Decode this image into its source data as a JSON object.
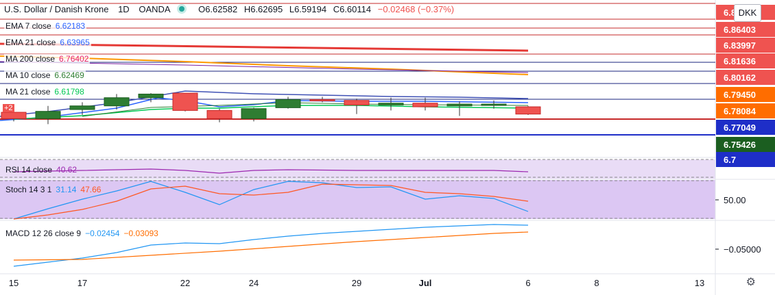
{
  "header": {
    "symbol": "U.S. Dollar / Danish Krone",
    "interval": "1D",
    "source": "OANDA",
    "open": "O6.62582",
    "high": "H6.62695",
    "low": "L6.59194",
    "close": "C6.60114",
    "change": "−0.02468 (−0.37%)",
    "currency": "DKK"
  },
  "badge": "+2",
  "legends": {
    "ema7": {
      "label": "EMA 7 close",
      "value": "6.62183",
      "color": "#2962ff"
    },
    "ema21": {
      "label": "EMA 21 close",
      "value": "6.63965",
      "color": "#2962ff"
    },
    "ma200": {
      "label": "MA 200 close",
      "value": "6.76402",
      "color": "#e91e63"
    },
    "ma10": {
      "label": "MA 10 close",
      "value": "6.62469",
      "color": "#2e7d32"
    },
    "ma21": {
      "label": "MA 21 close",
      "value": "6.61798",
      "color": "#00c853"
    },
    "rsi": {
      "label": "RSI 14 close",
      "value": "40.62",
      "color": "#9c27b0"
    },
    "stoch": {
      "label": "Stoch 14 3 1",
      "k": "31.14",
      "d": "47.66",
      "k_color": "#2196f3",
      "d_color": "#ff5722"
    },
    "macd": {
      "label": "MACD 12 26 close 9",
      "macd": "−0.02454",
      "signal": "−0.03093",
      "macd_color": "#2196f3",
      "signal_color": "#ff6d00"
    }
  },
  "chart_data": {
    "type": "candlestick",
    "x_ticks": [
      "15",
      "17",
      "22",
      "24",
      "29",
      "Jul",
      "6",
      "8",
      "13"
    ],
    "price_scale": [
      {
        "label": "6.8",
        "bg": "#ef5350",
        "fg": "#ffffff"
      },
      {
        "label": "6.86403",
        "bg": "#ef5350",
        "fg": "#ffffff"
      },
      {
        "label": "6.83997",
        "bg": "#ef5350",
        "fg": "#ffffff"
      },
      {
        "label": "6.81636",
        "bg": "#ef5350",
        "fg": "#ffffff"
      },
      {
        "label": "6.80162",
        "bg": "#ef5350",
        "fg": "#ffffff"
      },
      {
        "label": "6.79450",
        "bg": "#ff6d00",
        "fg": "#ffffff"
      },
      {
        "label": "6.78084",
        "bg": "#ff6d00",
        "fg": "#ffffff"
      },
      {
        "label": "6.77049",
        "bg": "#1e2ec8",
        "fg": "#ffffff"
      },
      {
        "label": "6.75426",
        "bg": "#1b5e20",
        "fg": "#ffffff"
      },
      {
        "label": "6.7",
        "bg": "#1e2ec8",
        "fg": "#ffffff"
      }
    ],
    "candles": [
      {
        "o": 6.778,
        "h": 6.781,
        "l": 6.768,
        "c": 6.771,
        "x": 20
      },
      {
        "o": 6.771,
        "h": 6.785,
        "l": 6.765,
        "c": 6.779,
        "x": 70
      },
      {
        "o": 6.781,
        "h": 6.789,
        "l": 6.775,
        "c": 6.785,
        "x": 120
      },
      {
        "o": 6.785,
        "h": 6.798,
        "l": 6.781,
        "c": 6.794,
        "x": 170
      },
      {
        "o": 6.794,
        "h": 6.799,
        "l": 6.789,
        "c": 6.798,
        "x": 220
      },
      {
        "o": 6.799,
        "h": 6.799,
        "l": 6.779,
        "c": 6.78,
        "x": 270
      },
      {
        "o": 6.78,
        "h": 6.782,
        "l": 6.767,
        "c": 6.771,
        "x": 320
      },
      {
        "o": 6.771,
        "h": 6.783,
        "l": 6.768,
        "c": 6.782,
        "x": 370
      },
      {
        "o": 6.783,
        "h": 6.795,
        "l": 6.782,
        "c": 6.792,
        "x": 420
      },
      {
        "o": 6.792,
        "h": 6.795,
        "l": 6.789,
        "c": 6.791,
        "x": 470
      },
      {
        "o": 6.791,
        "h": 6.793,
        "l": 6.776,
        "c": 6.786,
        "x": 520
      },
      {
        "o": 6.786,
        "h": 6.794,
        "l": 6.78,
        "c": 6.788,
        "x": 570
      },
      {
        "o": 6.788,
        "h": 6.794,
        "l": 6.78,
        "c": 6.784,
        "x": 620
      },
      {
        "o": 6.785,
        "h": 6.79,
        "l": 6.774,
        "c": 6.787,
        "x": 670
      },
      {
        "o": 6.786,
        "h": 6.791,
        "l": 6.782,
        "c": 6.787,
        "x": 720
      },
      {
        "o": 6.784,
        "h": 6.785,
        "l": 6.775,
        "c": 6.776,
        "x": 770
      }
    ],
    "rsi_scale_label": "",
    "stoch_scale_label": "50.00",
    "macd_scale_label": "−0.05000"
  }
}
